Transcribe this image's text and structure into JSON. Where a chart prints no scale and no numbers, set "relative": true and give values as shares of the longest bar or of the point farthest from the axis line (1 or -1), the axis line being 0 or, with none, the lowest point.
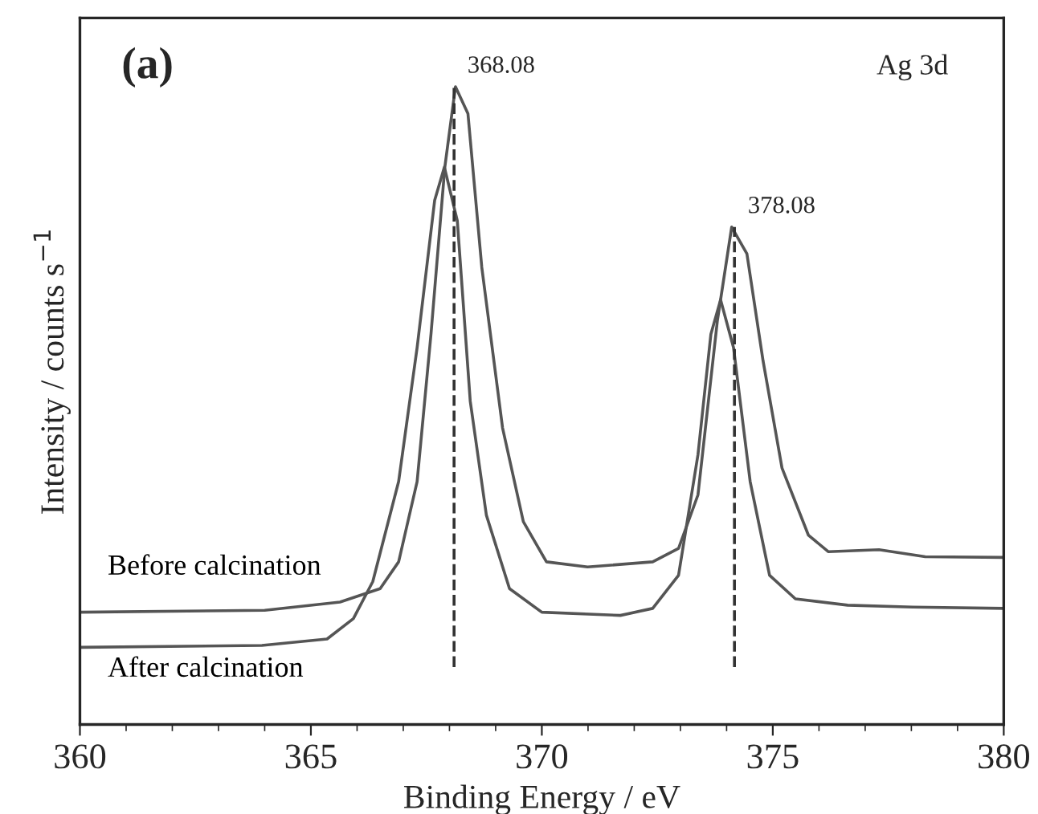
{
  "chart_data": {
    "type": "line",
    "relative": true,
    "xlabel": "Binding Energy / eV",
    "ylabel": "Intensity / counts s$^{−1}$",
    "xlim": [
      360,
      380
    ],
    "xticks": [
      360,
      365,
      370,
      375,
      380
    ],
    "grid": false,
    "legend": false,
    "line_style": "solid",
    "marker": "none",
    "series": [
      {
        "name": "Before calcination",
        "color": "#555555",
        "x": [
          360,
          364,
          365.63,
          366.5,
          366.9,
          367.3,
          367.6,
          367.9,
          368.13,
          368.4,
          368.7,
          369.15,
          369.6,
          370.1,
          370.99,
          372.4,
          372.96,
          373.38,
          373.8,
          374.11,
          374.44,
          374.79,
          375.2,
          375.77,
          376.2,
          377.3,
          378.3,
          380
        ],
        "values": [
          0.176,
          0.179,
          0.192,
          0.213,
          0.255,
          0.381,
          0.612,
          0.874,
          1.0,
          0.958,
          0.717,
          0.465,
          0.318,
          0.255,
          0.247,
          0.255,
          0.276,
          0.36,
          0.633,
          0.78,
          0.738,
          0.57,
          0.402,
          0.297,
          0.271,
          0.274,
          0.263,
          0.262
        ]
      },
      {
        "name": "After calcination",
        "color": "#555555",
        "x": [
          360,
          363.94,
          365.35,
          365.92,
          366.34,
          366.9,
          367.3,
          367.68,
          367.89,
          368.17,
          368.45,
          368.8,
          369.3,
          370.0,
          371.7,
          372.4,
          372.96,
          373.38,
          373.66,
          373.87,
          374.15,
          374.51,
          374.93,
          375.49,
          376.62,
          378.03,
          380
        ],
        "values": [
          0.121,
          0.124,
          0.134,
          0.166,
          0.224,
          0.381,
          0.591,
          0.822,
          0.874,
          0.79,
          0.507,
          0.328,
          0.213,
          0.176,
          0.171,
          0.182,
          0.234,
          0.423,
          0.612,
          0.666,
          0.591,
          0.381,
          0.234,
          0.197,
          0.187,
          0.184,
          0.182
        ]
      }
    ],
    "ref_lines": [
      {
        "axis": "x",
        "value": 368.1,
        "color": "#333333",
        "line_style": "dashed"
      },
      {
        "axis": "x",
        "value": 374.17,
        "color": "#333333",
        "line_style": "dashed"
      }
    ],
    "annotations": [
      {
        "text": "368.08",
        "x": 368.1,
        "y": 1.0
      },
      {
        "text": "378.08",
        "x": 374.17,
        "y": 0.78
      },
      "(a)",
      "Ag 3d"
    ]
  }
}
